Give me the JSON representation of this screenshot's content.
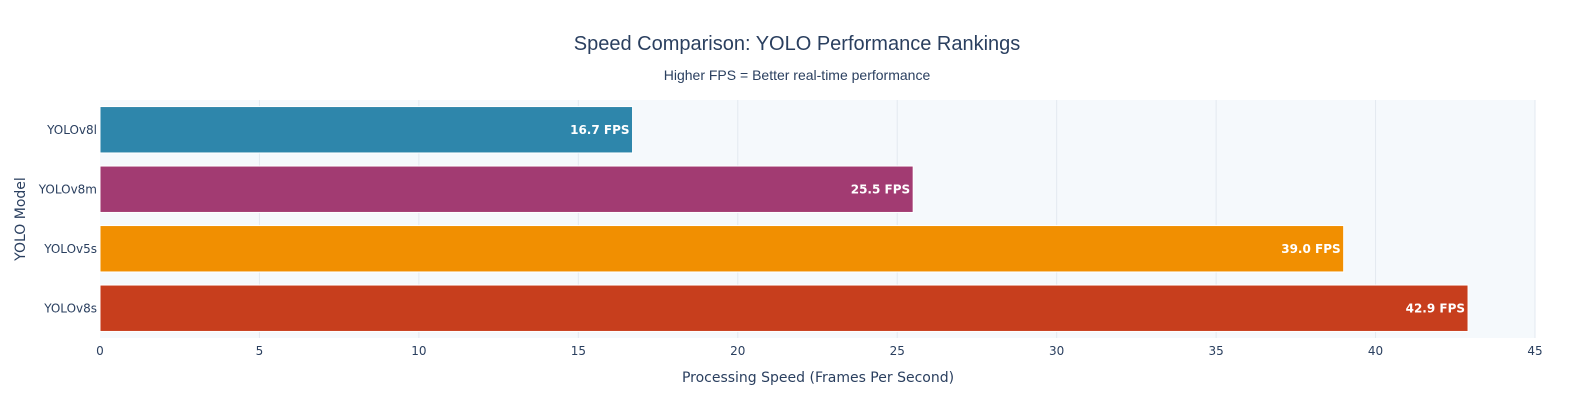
{
  "chart_data": {
    "type": "bar",
    "orientation": "horizontal",
    "title": "Speed Comparison: YOLO Performance Rankings",
    "subtitle": "Higher FPS = Better real-time performance",
    "xlabel": "Processing Speed (Frames Per Second)",
    "ylabel": "YOLO Model",
    "xlim": [
      0,
      45
    ],
    "xticks": [
      0,
      5,
      10,
      15,
      20,
      25,
      30,
      35,
      40,
      45
    ],
    "grid": true,
    "legend": "none",
    "categories": [
      "YOLOv8l",
      "YOLOv8m",
      "YOLOv5s",
      "YOLOv8s"
    ],
    "values": [
      16.7,
      25.5,
      39.0,
      42.9
    ],
    "data_labels": [
      "16.7 FPS",
      "25.5 FPS",
      "39.0 FPS",
      "42.9 FPS"
    ],
    "colors": [
      "#2e86ab",
      "#a23b72",
      "#f18f01",
      "#c73e1d"
    ],
    "plot_background": "#f5f9fc"
  }
}
